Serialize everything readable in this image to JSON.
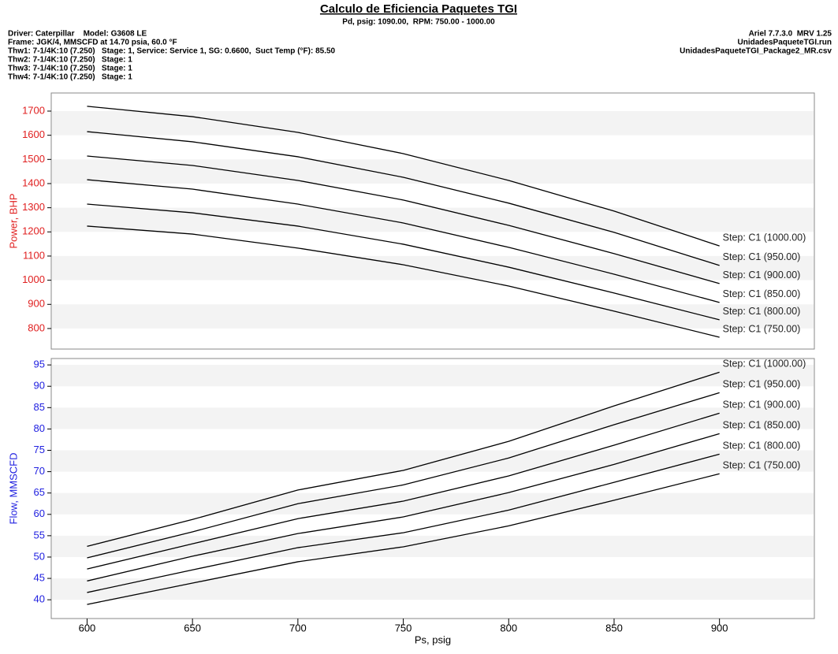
{
  "header": {
    "title": "Calculo de Eficiencia Paquetes TGI",
    "subtitle": "Pd, psig: 1090.00,  RPM: 750.00 - 1000.00",
    "left_lines": [
      "Driver: Caterpillar    Model: G3608 LE",
      "Frame: JGK/4, MMSCFD at 14.70 psia, 60.0 °F",
      "Thw1: 7-1/4K:10 (7.250)   Stage: 1, Service: Service 1, SG: 0.6600,  Suct Temp (°F): 85.50",
      "Thw2: 7-1/4K:10 (7.250)   Stage: 1",
      "Thw3: 7-1/4K:10 (7.250)   Stage: 1",
      "Thw4: 7-1/4K:10 (7.250)   Stage: 1"
    ],
    "right_lines": [
      "Ariel 7.7.3.0  MRV 1.25",
      "UnidadesPaqueteTGI.run",
      "UnidadesPaqueteTGI_Package2_MR.csv"
    ]
  },
  "chart_data": [
    {
      "type": "line",
      "ylabel": "Power, BHP",
      "axis_color": "#e02020",
      "grid": "bands",
      "x": [
        600,
        650,
        700,
        750,
        800,
        850,
        900
      ],
      "xlim": [
        583,
        945
      ],
      "ylim": [
        715,
        1775
      ],
      "yticks": [
        800,
        900,
        1000,
        1100,
        1200,
        1300,
        1400,
        1500,
        1600,
        1700
      ],
      "series": [
        {
          "name": "Step: C1 (1000.00)",
          "color": "#000000",
          "values": [
            1720,
            1677,
            1612,
            1524,
            1413,
            1286,
            1142
          ]
        },
        {
          "name": "Step: C1 (950.00)",
          "color": "#000000",
          "values": [
            1615,
            1573,
            1511,
            1426,
            1319,
            1198,
            1061
          ]
        },
        {
          "name": "Step: C1 (900.00)",
          "color": "#000000",
          "values": [
            1514,
            1475,
            1413,
            1332,
            1227,
            1110,
            986
          ]
        },
        {
          "name": "Step: C1 (850.00)",
          "color": "#000000",
          "values": [
            1416,
            1377,
            1315,
            1237,
            1136,
            1025,
            908
          ]
        },
        {
          "name": "Step: C1 (800.00)",
          "color": "#000000",
          "values": [
            1315,
            1279,
            1224,
            1149,
            1054,
            947,
            836
          ]
        },
        {
          "name": "Step: C1 (750.00)",
          "color": "#000000",
          "values": [
            1224,
            1191,
            1133,
            1064,
            976,
            872,
            764
          ]
        }
      ]
    },
    {
      "type": "line",
      "ylabel": "Flow, MMSCFD",
      "xlabel": "Ps, psig",
      "axis_color": "#2020e0",
      "grid": "bands",
      "x": [
        600,
        650,
        700,
        750,
        800,
        850,
        900
      ],
      "xlim": [
        583,
        945
      ],
      "xticks": [
        600,
        650,
        700,
        750,
        800,
        850,
        900
      ],
      "ylim": [
        35.6,
        96.5
      ],
      "yticks": [
        40,
        45,
        50,
        55,
        60,
        65,
        70,
        75,
        80,
        85,
        90,
        95
      ],
      "series": [
        {
          "name": "Step: C1 (1000.00)",
          "color": "#000000",
          "values": [
            52.5,
            58.8,
            65.7,
            70.3,
            77.1,
            85.4,
            93.3
          ]
        },
        {
          "name": "Step: C1 (950.00)",
          "color": "#000000",
          "values": [
            49.8,
            55.9,
            62.5,
            66.9,
            73.2,
            81.0,
            88.5
          ]
        },
        {
          "name": "Step: C1 (900.00)",
          "color": "#000000",
          "values": [
            47.2,
            53.1,
            59.0,
            63.1,
            69.0,
            76.2,
            83.7
          ]
        },
        {
          "name": "Step: C1 (850.00)",
          "color": "#000000",
          "values": [
            44.4,
            50.2,
            55.5,
            59.4,
            65.1,
            71.7,
            78.9
          ]
        },
        {
          "name": "Step: C1 (800.00)",
          "color": "#000000",
          "values": [
            41.7,
            47.0,
            52.2,
            55.7,
            61.0,
            67.5,
            74.1
          ]
        },
        {
          "name": "Step: C1 (750.00)",
          "color": "#000000",
          "values": [
            38.9,
            43.9,
            48.9,
            52.4,
            57.3,
            63.3,
            69.5
          ]
        }
      ]
    }
  ]
}
